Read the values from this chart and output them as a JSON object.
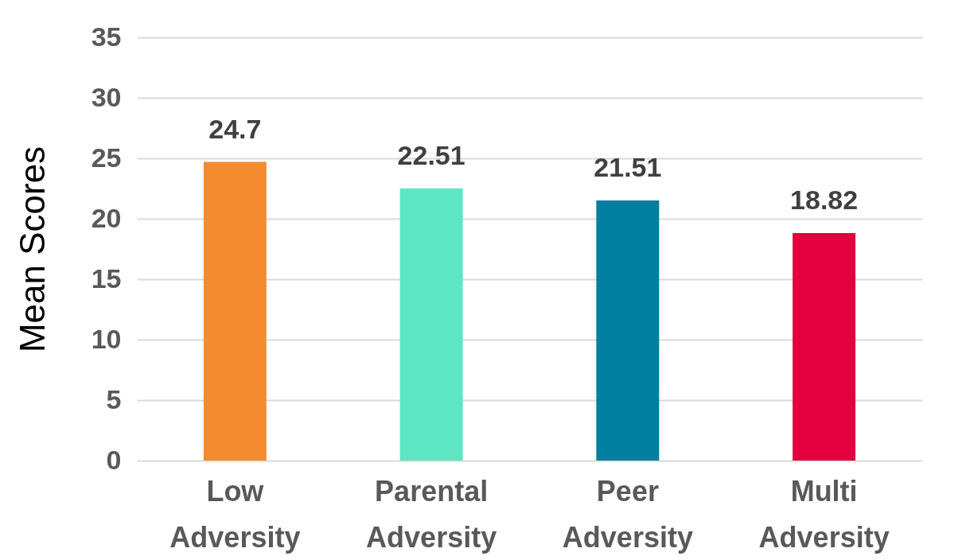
{
  "chart_data": {
    "type": "bar",
    "ylabel": "Mean Scores",
    "categories": [
      "Low Adversity",
      "Parental Adversity",
      "Peer Adversity",
      "Multi Adversity"
    ],
    "values": [
      24.7,
      22.51,
      21.51,
      18.82
    ],
    "colors": [
      "#f48c2f",
      "#5de6c3",
      "#007fa1",
      "#e2003f"
    ],
    "ylim": [
      0,
      35
    ],
    "yticks": [
      0,
      5,
      10,
      15,
      20,
      25,
      30,
      35
    ],
    "grid": "y",
    "data_labels": true
  }
}
